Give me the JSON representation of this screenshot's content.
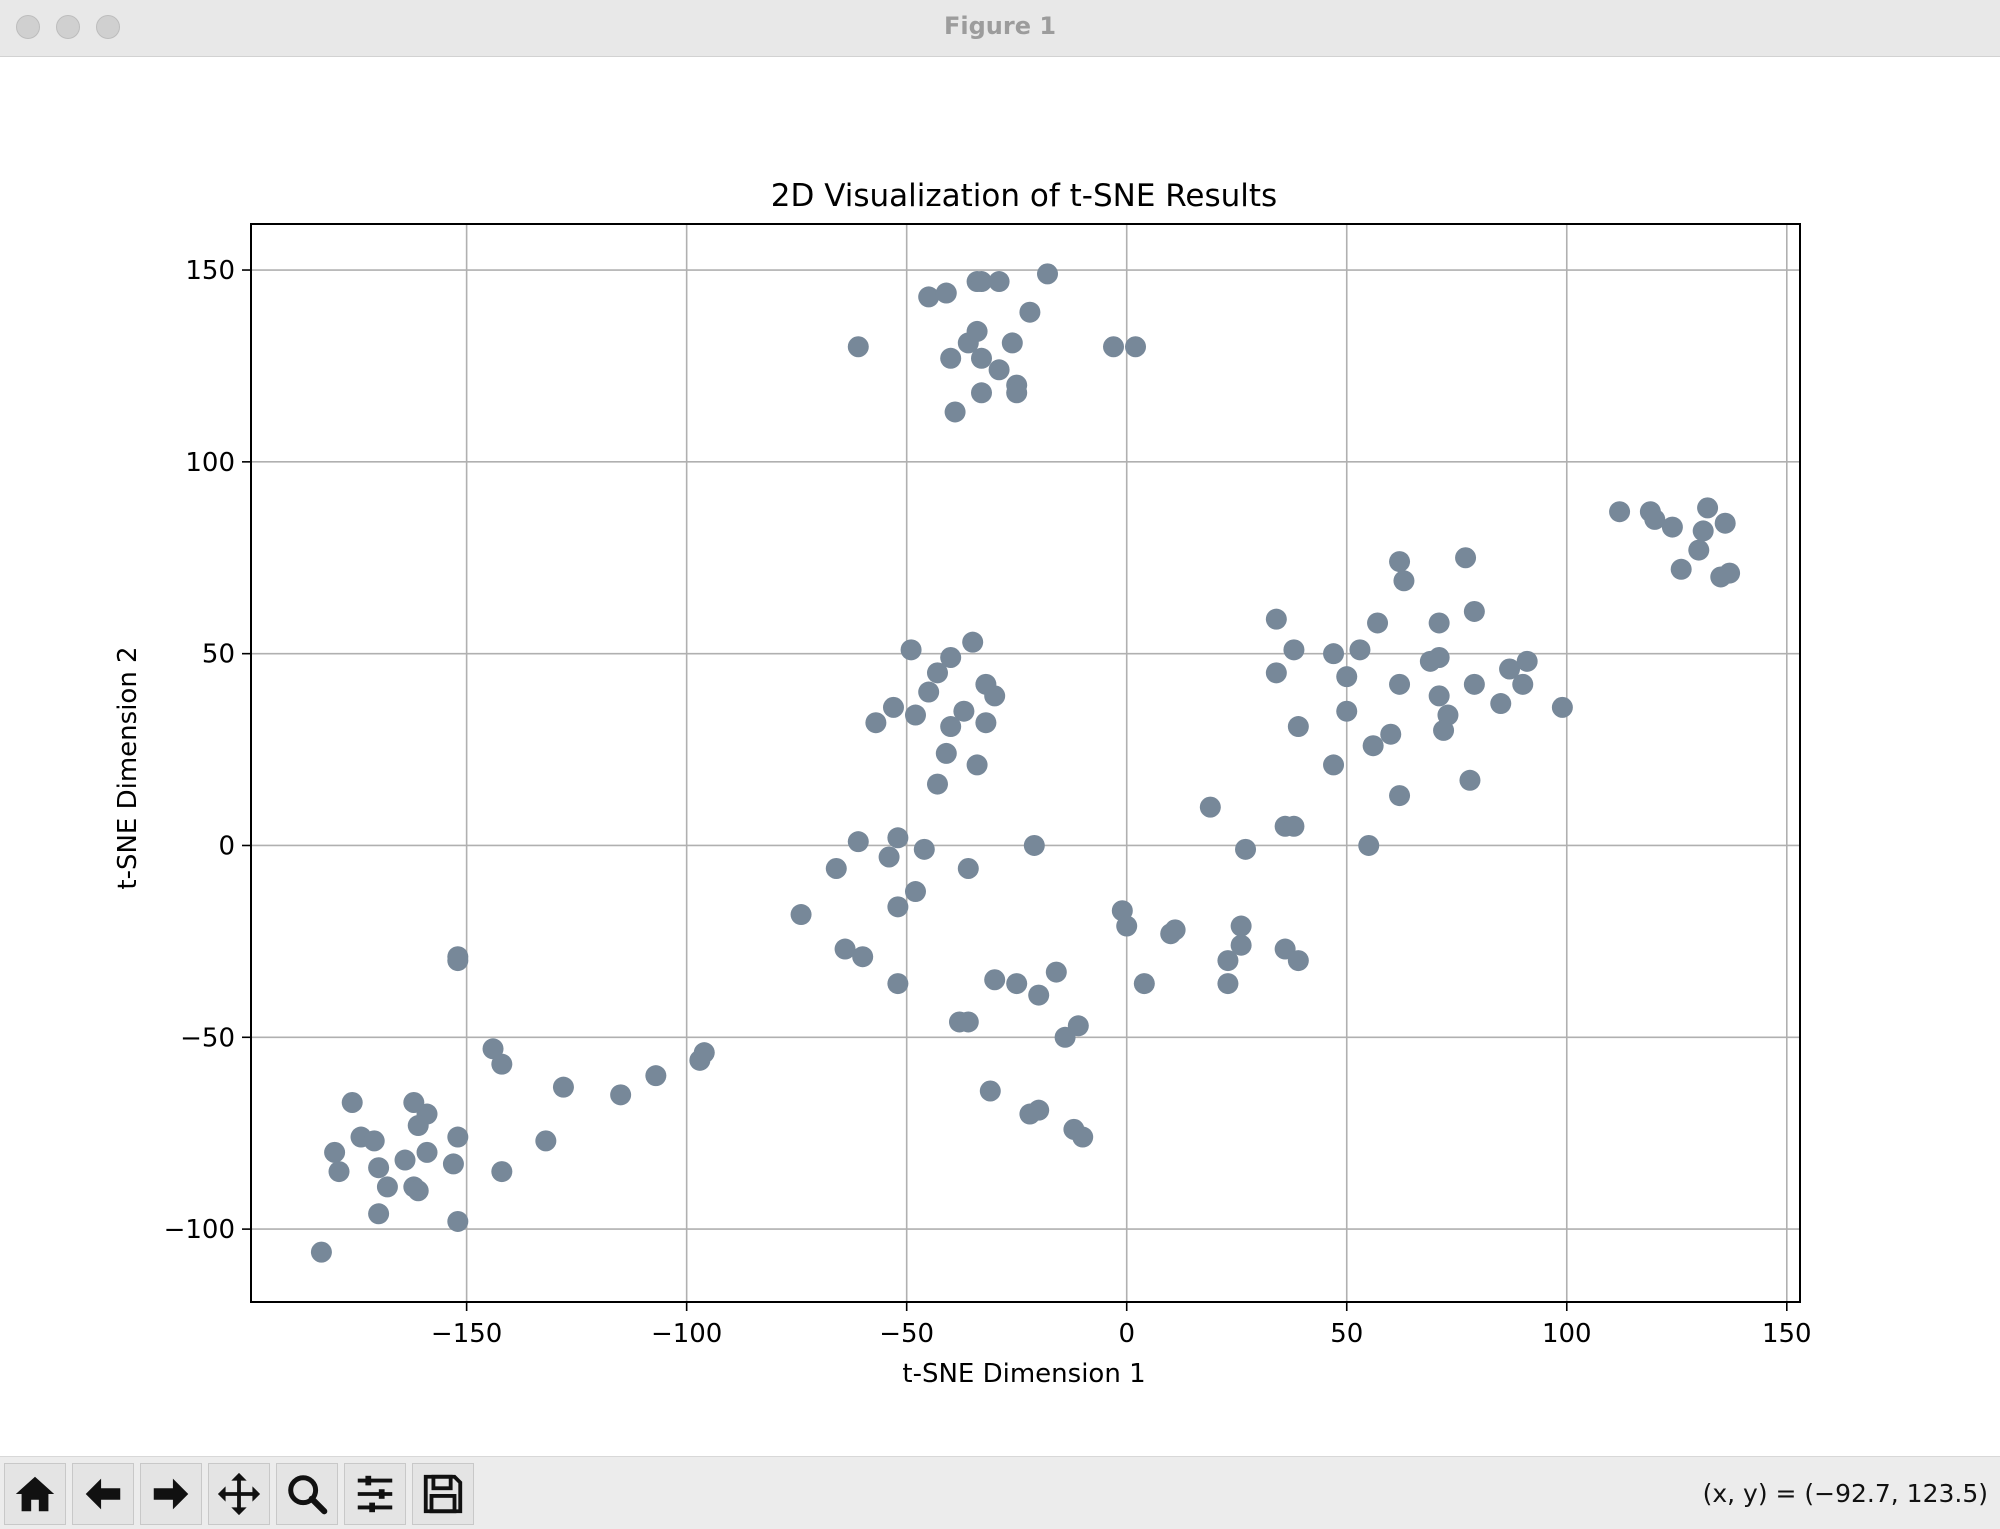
{
  "window": {
    "title": "Figure 1"
  },
  "toolbar": {
    "buttons": [
      {
        "name": "home-button",
        "icon": "home-icon"
      },
      {
        "name": "back-button",
        "icon": "arrow-left-icon"
      },
      {
        "name": "forward-button",
        "icon": "arrow-right-icon"
      },
      {
        "name": "pan-button",
        "icon": "move-icon"
      },
      {
        "name": "zoom-button",
        "icon": "magnifier-icon"
      },
      {
        "name": "configure-subplots-button",
        "icon": "sliders-icon"
      },
      {
        "name": "save-button",
        "icon": "floppy-disk-icon"
      }
    ],
    "coords": "(x, y) = (−92.7, 123.5)"
  },
  "chart_data": {
    "type": "scatter",
    "title": "2D Visualization of t-SNE Results",
    "xlabel": "t-SNE Dimension 1",
    "ylabel": "t-SNE Dimension 2",
    "xlim": [
      -199,
      153
    ],
    "ylim": [
      -119,
      162
    ],
    "xticks": [
      -150,
      -100,
      -50,
      0,
      50,
      100,
      150
    ],
    "yticks": [
      -100,
      -50,
      0,
      50,
      100,
      150
    ],
    "tick_labels_x": [
      "−150",
      "−100",
      "−50",
      "0",
      "50",
      "100",
      "150"
    ],
    "tick_labels_y": [
      "−100",
      "−50",
      "0",
      "50",
      "100",
      "150"
    ],
    "grid": true,
    "color": "#778899",
    "points": [
      [
        -61,
        130
      ],
      [
        -45,
        143
      ],
      [
        -41,
        144
      ],
      [
        -34,
        147
      ],
      [
        -33,
        147
      ],
      [
        -29,
        147
      ],
      [
        -18,
        149
      ],
      [
        -22,
        139
      ],
      [
        -36,
        131
      ],
      [
        -34,
        134
      ],
      [
        -26,
        131
      ],
      [
        -40,
        127
      ],
      [
        -33,
        127
      ],
      [
        -29,
        124
      ],
      [
        -25,
        120
      ],
      [
        -33,
        118
      ],
      [
        -25,
        118
      ],
      [
        -39,
        113
      ],
      [
        -3,
        130
      ],
      [
        2,
        130
      ],
      [
        -49,
        51
      ],
      [
        -35,
        53
      ],
      [
        -40,
        49
      ],
      [
        -43,
        45
      ],
      [
        -32,
        42
      ],
      [
        -45,
        40
      ],
      [
        -30,
        39
      ],
      [
        -53,
        36
      ],
      [
        -48,
        34
      ],
      [
        -37,
        35
      ],
      [
        -57,
        32
      ],
      [
        -40,
        31
      ],
      [
        -32,
        32
      ],
      [
        -41,
        24
      ],
      [
        -34,
        21
      ],
      [
        -43,
        16
      ],
      [
        -61,
        1
      ],
      [
        -52,
        2
      ],
      [
        -46,
        -1
      ],
      [
        -21,
        0
      ],
      [
        -54,
        -3
      ],
      [
        -66,
        -6
      ],
      [
        -36,
        -6
      ],
      [
        -48,
        -12
      ],
      [
        -52,
        -16
      ],
      [
        -74,
        -18
      ],
      [
        -64,
        -27
      ],
      [
        -60,
        -29
      ],
      [
        -52,
        -36
      ],
      [
        -30,
        -35
      ],
      [
        -25,
        -36
      ],
      [
        -16,
        -33
      ],
      [
        -20,
        -39
      ],
      [
        -38,
        -46
      ],
      [
        -36,
        -46
      ],
      [
        -11,
        -47
      ],
      [
        -14,
        -50
      ],
      [
        -31,
        -64
      ],
      [
        -22,
        -70
      ],
      [
        -20,
        -69
      ],
      [
        -12,
        -74
      ],
      [
        -10,
        -76
      ],
      [
        -1,
        -17
      ],
      [
        0,
        -21
      ],
      [
        10,
        -23
      ],
      [
        11,
        -22
      ],
      [
        4,
        -36
      ],
      [
        26,
        -21
      ],
      [
        23,
        -30
      ],
      [
        26,
        -26
      ],
      [
        23,
        -36
      ],
      [
        36,
        -27
      ],
      [
        39,
        -30
      ],
      [
        19,
        10
      ],
      [
        36,
        5
      ],
      [
        38,
        5
      ],
      [
        27,
        -1
      ],
      [
        55,
        0
      ],
      [
        34,
        59
      ],
      [
        38,
        51
      ],
      [
        34,
        45
      ],
      [
        47,
        50
      ],
      [
        53,
        51
      ],
      [
        57,
        58
      ],
      [
        50,
        44
      ],
      [
        62,
        42
      ],
      [
        50,
        35
      ],
      [
        39,
        31
      ],
      [
        60,
        29
      ],
      [
        56,
        26
      ],
      [
        47,
        21
      ],
      [
        62,
        13
      ],
      [
        62,
        74
      ],
      [
        63,
        69
      ],
      [
        77,
        75
      ],
      [
        71,
        58
      ],
      [
        79,
        61
      ],
      [
        69,
        48
      ],
      [
        71,
        49
      ],
      [
        79,
        42
      ],
      [
        71,
        39
      ],
      [
        73,
        34
      ],
      [
        72,
        30
      ],
      [
        85,
        37
      ],
      [
        87,
        46
      ],
      [
        91,
        48
      ],
      [
        90,
        42
      ],
      [
        99,
        36
      ],
      [
        78,
        17
      ],
      [
        112,
        87
      ],
      [
        119,
        87
      ],
      [
        120,
        85
      ],
      [
        124,
        83
      ],
      [
        132,
        88
      ],
      [
        136,
        84
      ],
      [
        131,
        82
      ],
      [
        130,
        77
      ],
      [
        126,
        72
      ],
      [
        135,
        70
      ],
      [
        137,
        71
      ],
      [
        -152,
        -29
      ],
      [
        -152,
        -30
      ],
      [
        -144,
        -53
      ],
      [
        -142,
        -57
      ],
      [
        -128,
        -63
      ],
      [
        -115,
        -65
      ],
      [
        -107,
        -60
      ],
      [
        -97,
        -56
      ],
      [
        -96,
        -54
      ],
      [
        -132,
        -77
      ],
      [
        -142,
        -85
      ],
      [
        -152,
        -98
      ],
      [
        -176,
        -67
      ],
      [
        -162,
        -67
      ],
      [
        -159,
        -70
      ],
      [
        -161,
        -73
      ],
      [
        -174,
        -76
      ],
      [
        -171,
        -77
      ],
      [
        -152,
        -76
      ],
      [
        -180,
        -80
      ],
      [
        -159,
        -80
      ],
      [
        -164,
        -82
      ],
      [
        -170,
        -84
      ],
      [
        -153,
        -83
      ],
      [
        -179,
        -85
      ],
      [
        -168,
        -89
      ],
      [
        -162,
        -89
      ],
      [
        -161,
        -90
      ],
      [
        -170,
        -96
      ],
      [
        -183,
        -106
      ]
    ]
  }
}
